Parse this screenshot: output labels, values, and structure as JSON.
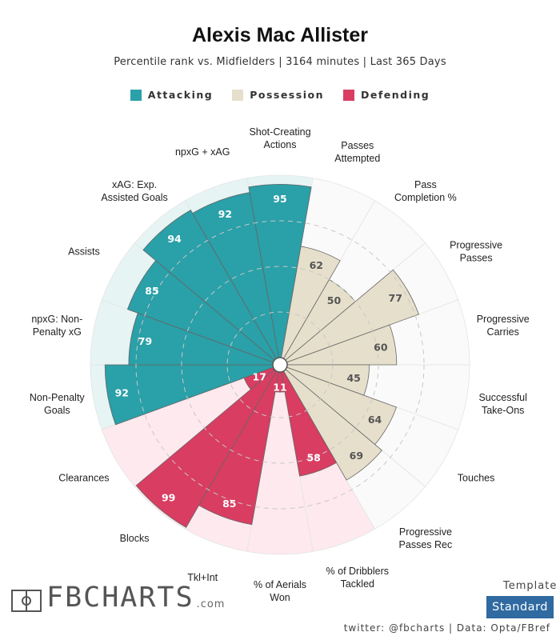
{
  "header": {
    "title": "Alexis Mac Allister",
    "subtitle": "Percentile rank vs. Midfielders | 3164 minutes | Last 365 Days"
  },
  "legend": [
    {
      "label": "Attacking",
      "color": "#2aa0a8"
    },
    {
      "label": "Possession",
      "color": "#e6dfcb"
    },
    {
      "label": "Defending",
      "color": "#d93d62"
    }
  ],
  "chart_data": {
    "type": "radial-bar",
    "max": 100,
    "title": "Alexis Mac Allister",
    "metrics": [
      {
        "label": "Shot-Creating\nActions",
        "value": 95,
        "group": "Attacking"
      },
      {
        "label": "Passes\nAttempted",
        "value": 62,
        "group": "Possession"
      },
      {
        "label": "Pass\nCompletion %",
        "value": 50,
        "group": "Possession"
      },
      {
        "label": "Progressive\nPasses",
        "value": 77,
        "group": "Possession"
      },
      {
        "label": "Progressive\nCarries",
        "value": 60,
        "group": "Possession"
      },
      {
        "label": "Successful\nTake-Ons",
        "value": 45,
        "group": "Possession"
      },
      {
        "label": "Touches",
        "value": 64,
        "group": "Possession"
      },
      {
        "label": "Progressive\nPasses Rec",
        "value": 69,
        "group": "Possession"
      },
      {
        "label": "% of Dribblers\nTackled",
        "value": 58,
        "group": "Defending"
      },
      {
        "label": "% of Aerials\nWon",
        "value": 11,
        "group": "Defending"
      },
      {
        "label": "Tkl+Int",
        "value": 85,
        "group": "Defending"
      },
      {
        "label": "Blocks",
        "value": 99,
        "group": "Defending"
      },
      {
        "label": "Clearances",
        "value": 17,
        "group": "Defending"
      },
      {
        "label": "Non-Penalty\nGoals",
        "value": 92,
        "group": "Attacking"
      },
      {
        "label": "npxG: Non-\nPenalty xG",
        "value": 79,
        "group": "Attacking"
      },
      {
        "label": "Assists",
        "value": 85,
        "group": "Attacking"
      },
      {
        "label": "xAG: Exp.\nAssisted Goals",
        "value": 94,
        "group": "Attacking"
      },
      {
        "label": "npxG + xAG",
        "value": 92,
        "group": "Attacking"
      }
    ],
    "group_colors": {
      "Attacking": {
        "bar": "#2aa0a8",
        "bg": "#e6f4f4"
      },
      "Possession": {
        "bar": "#e6dfcb",
        "bg": "#fafafa"
      },
      "Defending": {
        "bar": "#d93d62",
        "bg": "#fde9ee"
      }
    },
    "value_text_colors": {
      "Attacking": "#ffffff",
      "Possession": "#555555",
      "Defending": "#ffffff"
    }
  },
  "footer": {
    "brand": "FBCHARTS",
    "brand_suffix": ".com",
    "template_label": "Template",
    "template_value": "Standard",
    "credit": "twitter: @fbcharts | Data: Opta/FBref"
  }
}
